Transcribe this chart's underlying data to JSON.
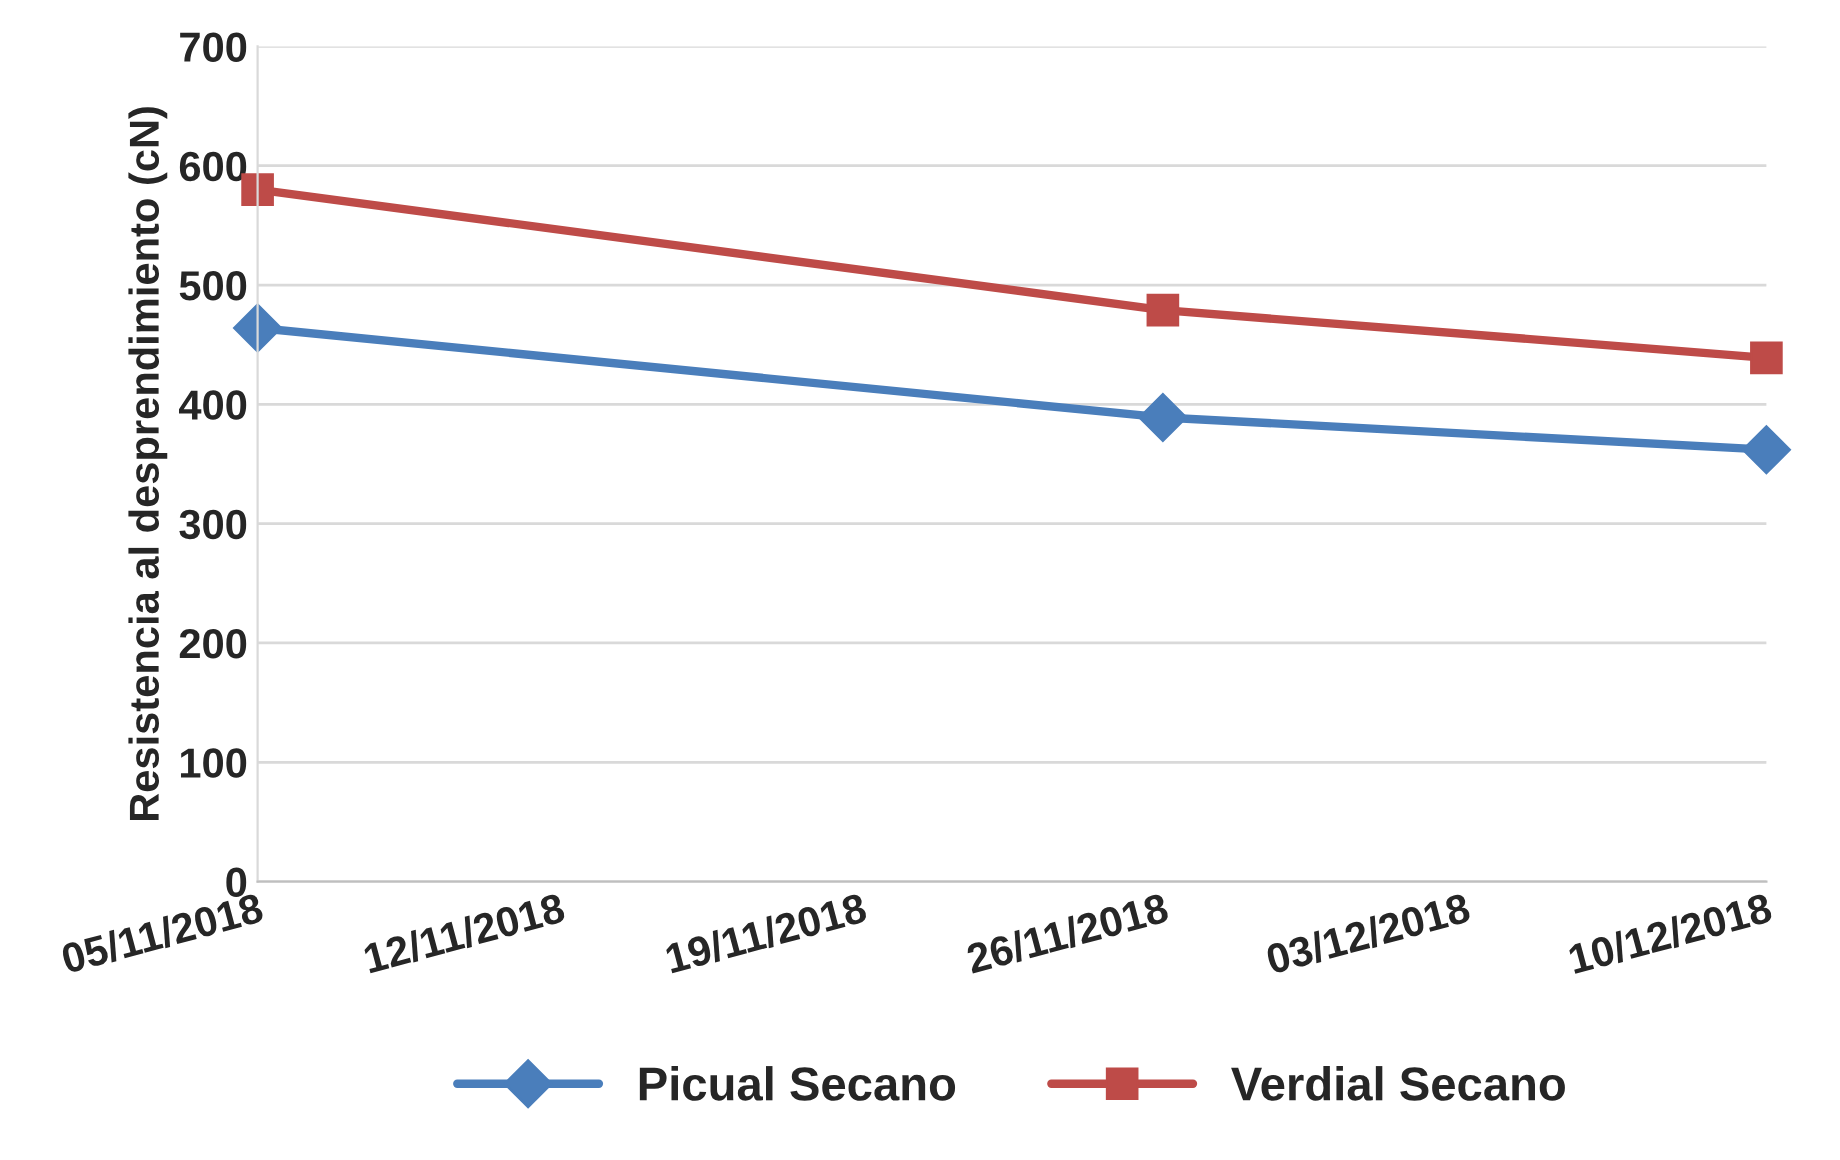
{
  "chart_data": {
    "type": "line",
    "ylabel": "Resistencia al desprendimiento (cN)",
    "x": [
      "2018-11-05",
      "2018-11-26",
      "2018-12-10"
    ],
    "series": [
      {
        "name": "Picual Secano",
        "color": "#4a7ebb",
        "values": [
          464,
          389,
          362
        ],
        "marker": "diamond"
      },
      {
        "name": "Verdial Secano",
        "color": "#be4b48",
        "values": [
          580,
          479,
          439
        ],
        "marker": "square"
      }
    ],
    "xlim": [
      "2018-11-05",
      "2018-12-10"
    ],
    "xticks": [
      {
        "value": "2018-11-05",
        "label": "05/11/2018"
      },
      {
        "value": "2018-11-12",
        "label": "12/11/2018"
      },
      {
        "value": "2018-11-19",
        "label": "19/11/2018"
      },
      {
        "value": "2018-11-26",
        "label": "26/11/2018"
      },
      {
        "value": "2018-12-03",
        "label": "03/12/2018"
      },
      {
        "value": "2018-12-10",
        "label": "10/12/2018"
      }
    ],
    "ylim": [
      0,
      700
    ],
    "yticks": [
      0,
      100,
      200,
      300,
      400,
      500,
      600,
      700
    ],
    "grid": "y",
    "legend": "bottom",
    "line_style": "solid"
  }
}
